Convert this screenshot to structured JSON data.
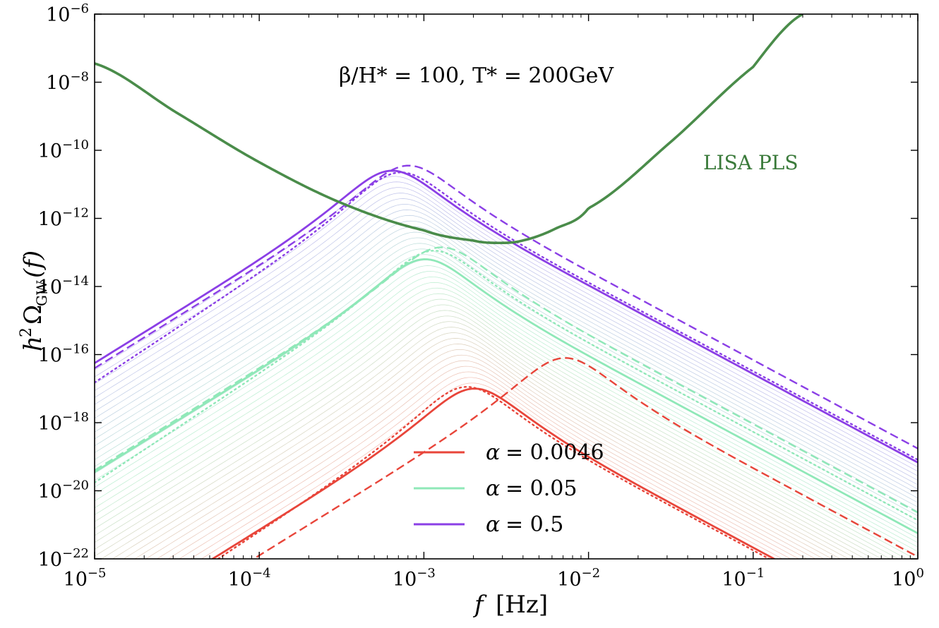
{
  "chart_data": {
    "type": "line",
    "title": "",
    "xscale": "log",
    "yscale": "log",
    "xlabel": "f [Hz]",
    "xlabel_var": "f",
    "xlabel_unit": "[Hz]",
    "ylabel": "h²Ω_GW(f)",
    "ylabel_main": "h",
    "ylabel_sup": "2",
    "ylabel_omega": "Ω",
    "ylabel_sub": "GW",
    "ylabel_arg": "(f)",
    "xlim_exp": [
      -5,
      0
    ],
    "ylim_exp": [
      -22,
      -6
    ],
    "x_ticks": [
      {
        "base": "10",
        "exp": "−5"
      },
      {
        "base": "10",
        "exp": "−4"
      },
      {
        "base": "10",
        "exp": "−3"
      },
      {
        "base": "10",
        "exp": "−2"
      },
      {
        "base": "10",
        "exp": "−1"
      },
      {
        "base": "10",
        "exp": "0"
      }
    ],
    "y_ticks": [
      {
        "base": "10",
        "exp": "−22"
      },
      {
        "base": "10",
        "exp": "−20"
      },
      {
        "base": "10",
        "exp": "−18"
      },
      {
        "base": "10",
        "exp": "−16"
      },
      {
        "base": "10",
        "exp": "−14"
      },
      {
        "base": "10",
        "exp": "−12"
      },
      {
        "base": "10",
        "exp": "−10"
      },
      {
        "base": "10",
        "exp": "−8"
      },
      {
        "base": "10",
        "exp": "−6"
      }
    ],
    "annotations": {
      "parameters": "β/H* = 100, T* = 200GeV",
      "sensitivity_label": "LISA PLS"
    },
    "sensitivity_curve": {
      "name": "LISA PLS",
      "color": "#4a8c4a",
      "x_log": [
        -5.0,
        -4.5,
        -4.0,
        -3.5,
        -3.0,
        -2.7,
        -2.55,
        -2.4,
        -2.2,
        -2.0,
        -1.5,
        -1.0,
        -0.7
      ],
      "y_log": [
        -7.45,
        -8.9,
        -10.35,
        -11.55,
        -12.35,
        -12.65,
        -12.72,
        -12.65,
        -12.3,
        -11.7,
        -9.75,
        -7.55,
        -6.0
      ]
    },
    "series": [
      {
        "name": "α = 0.0046 (solid)",
        "alpha": "0.0046",
        "style": "solid",
        "color": "#e8453a",
        "peak_x_log": -2.7,
        "peak_y_log": -17.0,
        "low_slope": 3.0,
        "high_slope": -2.6,
        "width": 2.8
      },
      {
        "name": "α = 0.0046 (dashed)",
        "alpha": "0.0046",
        "style": "dashed",
        "color": "#e8453a",
        "peak_x_log": -2.15,
        "peak_y_log": -16.1,
        "low_slope": 3.0,
        "high_slope": -2.6,
        "width": 2.4
      },
      {
        "name": "α = 0.0046 (dotted)",
        "alpha": "0.0046",
        "style": "dotted",
        "color": "#e8453a",
        "peak_x_log": -2.75,
        "peak_y_log": -16.95,
        "low_slope": 3.2,
        "high_slope": -2.6,
        "width": 2.4
      },
      {
        "name": "α = 0.05 (solid)",
        "alpha": "0.05",
        "style": "solid",
        "color": "#8fe8b8",
        "peak_x_log": -3.0,
        "peak_y_log": -13.2,
        "low_slope": 3.0,
        "high_slope": -2.6,
        "width": 2.8
      },
      {
        "name": "α = 0.05 (dashed)",
        "alpha": "0.05",
        "style": "dashed",
        "color": "#8fe8b8",
        "peak_x_log": -2.9,
        "peak_y_log": -12.85,
        "low_slope": 3.0,
        "high_slope": -2.6,
        "width": 2.4
      },
      {
        "name": "α = 0.05 (dotted)",
        "alpha": "0.05",
        "style": "dotted",
        "color": "#8fe8b8",
        "peak_x_log": -2.95,
        "peak_y_log": -12.95,
        "low_slope": 3.2,
        "high_slope": -2.6,
        "width": 2.4
      },
      {
        "name": "α = 0.5 (solid)",
        "alpha": "0.5",
        "style": "solid",
        "color": "#8b3fe6",
        "peak_x_log": -3.2,
        "peak_y_log": -10.6,
        "low_slope": 3.0,
        "high_slope": -2.6,
        "width": 2.8
      },
      {
        "name": "α = 0.5 (dashed)",
        "alpha": "0.5",
        "style": "dashed",
        "color": "#8b3fe6",
        "peak_x_log": -3.1,
        "peak_y_log": -10.45,
        "low_slope": 3.0,
        "high_slope": -2.6,
        "width": 2.4
      },
      {
        "name": "α = 0.5 (dotted)",
        "alpha": "0.5",
        "style": "dotted",
        "color": "#8b3fe6",
        "peak_x_log": -3.15,
        "peak_y_log": -10.65,
        "low_slope": 3.2,
        "high_slope": -2.6,
        "width": 2.4
      }
    ],
    "background_family": {
      "description": "family of thin interpolated curves between alpha values",
      "count": 40,
      "color_low": "#f4a69a",
      "color_mid": "#a8ecc4",
      "color_high": "#b0a4ec",
      "low_peak_x_log": -2.7,
      "low_peak_y_log": -17.0,
      "high_peak_x_log": -3.2,
      "high_peak_y_log": -10.6
    },
    "legend": {
      "position": "bottom-center",
      "entries": [
        {
          "label_var": "α",
          "label_value": "= 0.0046",
          "color": "#e8453a"
        },
        {
          "label_var": "α",
          "label_value": "= 0.05",
          "color": "#8fe8b8"
        },
        {
          "label_var": "α",
          "label_value": "= 0.5",
          "color": "#8b3fe6"
        }
      ]
    }
  }
}
